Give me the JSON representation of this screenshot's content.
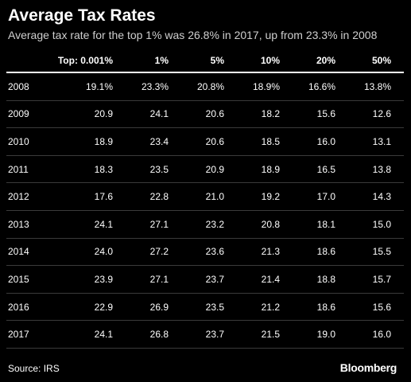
{
  "chart_data": {
    "type": "table",
    "title": "Average Tax Rates",
    "subtitle": "Average tax rate for the top 1% was 26.8% in 2017, up from 23.3% in 2008",
    "columns": [
      "",
      "Top: 0.001%",
      "1%",
      "5%",
      "10%",
      "20%",
      "50%"
    ],
    "rows": [
      [
        "2008",
        "19.1%",
        "23.3%",
        "20.8%",
        "18.9%",
        "16.6%",
        "13.8%"
      ],
      [
        "2009",
        "20.9",
        "24.1",
        "20.6",
        "18.2",
        "15.6",
        "12.6"
      ],
      [
        "2010",
        "18.9",
        "23.4",
        "20.6",
        "18.5",
        "16.0",
        "13.1"
      ],
      [
        "2011",
        "18.3",
        "23.5",
        "20.9",
        "18.9",
        "16.5",
        "13.8"
      ],
      [
        "2012",
        "17.6",
        "22.8",
        "21.0",
        "19.2",
        "17.0",
        "14.3"
      ],
      [
        "2013",
        "24.1",
        "27.1",
        "23.2",
        "20.8",
        "18.1",
        "15.0"
      ],
      [
        "2014",
        "24.0",
        "27.2",
        "23.6",
        "21.3",
        "18.6",
        "15.5"
      ],
      [
        "2015",
        "23.9",
        "27.1",
        "23.7",
        "21.4",
        "18.8",
        "15.7"
      ],
      [
        "2016",
        "22.9",
        "26.9",
        "23.5",
        "21.2",
        "18.6",
        "15.6"
      ],
      [
        "2017",
        "24.1",
        "26.8",
        "23.7",
        "21.5",
        "19.0",
        "16.0"
      ]
    ]
  },
  "footer": {
    "source": "Source: IRS",
    "brand": "Bloomberg"
  },
  "colors": {
    "background": "#000000",
    "text": "#ffffff",
    "row_divider": "#3a3a3a"
  }
}
